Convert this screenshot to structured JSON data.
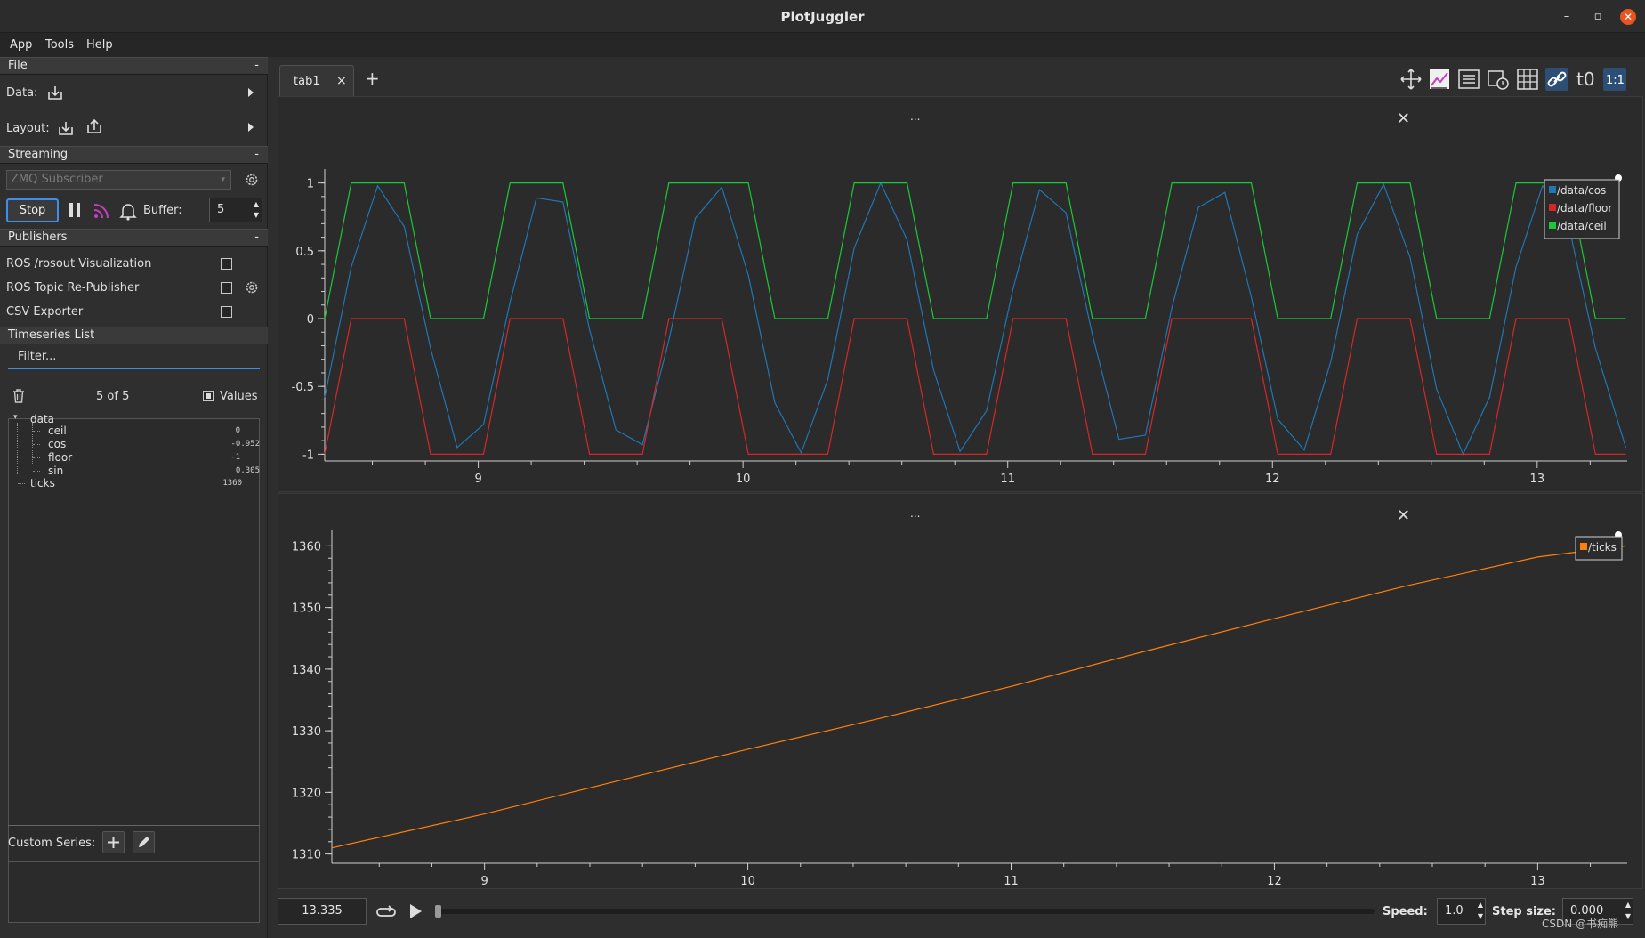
{
  "window": {
    "title": "PlotJuggler"
  },
  "menu": [
    "App",
    "Tools",
    "Help"
  ],
  "sidebar": {
    "file": {
      "header": "File",
      "collapse": "-",
      "data_label": "Data:",
      "layout_label": "Layout:"
    },
    "streaming": {
      "header": "Streaming",
      "collapse": "-",
      "source": "ZMQ Subscriber",
      "stop_label": "Stop",
      "buffer_label": "Buffer:",
      "buffer_value": "5"
    },
    "publishers": {
      "header": "Publishers",
      "collapse": "-",
      "items": [
        {
          "label": "ROS /rosout Visualization"
        },
        {
          "label": "ROS Topic Re-Publisher"
        },
        {
          "label": "CSV Exporter"
        }
      ]
    },
    "timeseries": {
      "header": "Timeseries List",
      "filter_placeholder": "Filter...",
      "count": "5 of 5",
      "values_label": "Values",
      "tree": {
        "root": "data",
        "children": [
          {
            "name": "ceil",
            "value": "0"
          },
          {
            "name": "cos",
            "value": "-0.952"
          },
          {
            "name": "floor",
            "value": "-1"
          },
          {
            "name": "sin",
            "value": "0.305"
          }
        ],
        "ticks": {
          "name": "ticks",
          "value": "1360"
        }
      }
    },
    "custom_series_label": "Custom Series:"
  },
  "tabs": {
    "active": "tab1",
    "close": "×",
    "add": "+"
  },
  "toolbar": {
    "icons": [
      "move-icon",
      "legend-style-icon",
      "list-icon",
      "time-icon",
      "grid-icon",
      "link-icon",
      "t0-icon",
      "ratio-icon"
    ],
    "t0_text": "t0",
    "ratio_text": "1:1"
  },
  "plots": {
    "dots": "...",
    "close": "✕"
  },
  "colors": {
    "cos": "#1f77b4",
    "floor": "#d62728",
    "ceil": "#1ac938",
    "ticks": "#ff7f0e",
    "accent": "#3d8ee8"
  },
  "chart_data": [
    {
      "type": "line",
      "xlim": [
        8.42,
        13.34
      ],
      "ylim": [
        -1.05,
        1.05
      ],
      "xticks": [
        9,
        10,
        11,
        12,
        13
      ],
      "yticks": [
        1,
        0.5,
        0,
        -0.5,
        -1
      ],
      "ytick_labels": [
        "1",
        "0.5",
        "0",
        "-0.5",
        "-1"
      ],
      "legend_placement": "top-right",
      "series": [
        {
          "name": "/data/cos",
          "x": [
            8.42,
            8.52,
            8.62,
            8.72,
            8.82,
            8.92,
            9.02,
            9.12,
            9.22,
            9.32,
            9.42,
            9.52,
            9.62,
            9.72,
            9.82,
            9.92,
            10.02,
            10.12,
            10.22,
            10.32,
            10.42,
            10.52,
            10.62,
            10.72,
            10.82,
            10.92,
            11.02,
            11.12,
            11.22,
            11.32,
            11.42,
            11.52,
            11.62,
            11.72,
            11.82,
            11.92,
            12.02,
            12.12,
            12.22,
            12.32,
            12.42,
            12.52,
            12.62,
            12.72,
            12.82,
            12.92,
            13.02,
            13.12,
            13.22,
            13.335
          ],
          "y": [
            -0.58,
            0.38,
            0.98,
            0.68,
            -0.22,
            -0.95,
            -0.78,
            0.12,
            0.89,
            0.86,
            -0.08,
            -0.82,
            -0.93,
            -0.16,
            0.74,
            0.97,
            0.32,
            -0.62,
            -0.99,
            -0.45,
            0.52,
            1.0,
            0.58,
            -0.38,
            -0.98,
            -0.68,
            0.22,
            0.95,
            0.78,
            -0.12,
            -0.89,
            -0.86,
            0.08,
            0.82,
            0.93,
            0.16,
            -0.74,
            -0.97,
            -0.32,
            0.62,
            0.99,
            0.45,
            -0.52,
            -1.0,
            -0.58,
            0.38,
            0.98,
            0.68,
            -0.22,
            -0.952
          ]
        },
        {
          "name": "/data/floor",
          "x": [
            8.42,
            8.52,
            8.62,
            8.72,
            8.82,
            8.92,
            9.02,
            9.12,
            9.22,
            9.32,
            9.42,
            9.52,
            9.62,
            9.72,
            9.82,
            9.92,
            10.02,
            10.12,
            10.22,
            10.32,
            10.42,
            10.52,
            10.62,
            10.72,
            10.82,
            10.92,
            11.02,
            11.12,
            11.22,
            11.32,
            11.42,
            11.52,
            11.62,
            11.72,
            11.82,
            11.92,
            12.02,
            12.12,
            12.22,
            12.32,
            12.42,
            12.52,
            12.62,
            12.72,
            12.82,
            12.92,
            13.02,
            13.12,
            13.22,
            13.335
          ],
          "y": [
            -1,
            0,
            0,
            0,
            -1,
            -1,
            -1,
            0,
            0,
            0,
            -1,
            -1,
            -1,
            0,
            0,
            0,
            -1,
            -1,
            -1,
            -1,
            0,
            0,
            0,
            -1,
            -1,
            -1,
            0,
            0,
            0,
            -1,
            -1,
            -1,
            0,
            0,
            0,
            0,
            -1,
            -1,
            -1,
            0,
            0,
            0,
            -1,
            -1,
            -1,
            0,
            0,
            0,
            -1,
            -1
          ]
        },
        {
          "name": "/data/ceil",
          "x": [
            8.42,
            8.52,
            8.62,
            8.72,
            8.82,
            8.92,
            9.02,
            9.12,
            9.22,
            9.32,
            9.42,
            9.52,
            9.62,
            9.72,
            9.82,
            9.92,
            10.02,
            10.12,
            10.22,
            10.32,
            10.42,
            10.52,
            10.62,
            10.72,
            10.82,
            10.92,
            11.02,
            11.12,
            11.22,
            11.32,
            11.42,
            11.52,
            11.62,
            11.72,
            11.82,
            11.92,
            12.02,
            12.12,
            12.22,
            12.32,
            12.42,
            12.52,
            12.62,
            12.72,
            12.82,
            12.92,
            13.02,
            13.12,
            13.22,
            13.335
          ],
          "y": [
            0,
            1,
            1,
            1,
            0,
            0,
            0,
            1,
            1,
            1,
            0,
            0,
            0,
            1,
            1,
            1,
            1,
            0,
            0,
            0,
            1,
            1,
            1,
            0,
            0,
            0,
            1,
            1,
            1,
            0,
            0,
            0,
            1,
            1,
            1,
            1,
            0,
            0,
            0,
            1,
            1,
            1,
            0,
            0,
            0,
            1,
            1,
            1,
            0,
            0
          ]
        }
      ]
    },
    {
      "type": "line",
      "xlim": [
        8.42,
        13.34
      ],
      "ylim": [
        1308.5,
        1361.5
      ],
      "xticks": [
        9,
        10,
        11,
        12,
        13
      ],
      "yticks": [
        1360,
        1350,
        1340,
        1330,
        1320,
        1310
      ],
      "legend_placement": "top-right",
      "series": [
        {
          "name": "/ticks",
          "x": [
            8.42,
            9.0,
            9.5,
            10.0,
            10.5,
            11.0,
            11.5,
            12.0,
            12.5,
            13.0,
            13.335
          ],
          "y": [
            1311,
            1316.5,
            1321.8,
            1327,
            1332,
            1337.2,
            1342.8,
            1348.2,
            1353.5,
            1358.2,
            1360
          ]
        }
      ]
    }
  ],
  "bottom": {
    "time": "13.335",
    "speed_label": "Speed:",
    "speed_value": "1.0",
    "step_label": "Step size:",
    "step_value": "0.000"
  },
  "watermark": "CSDN @书痴熊"
}
